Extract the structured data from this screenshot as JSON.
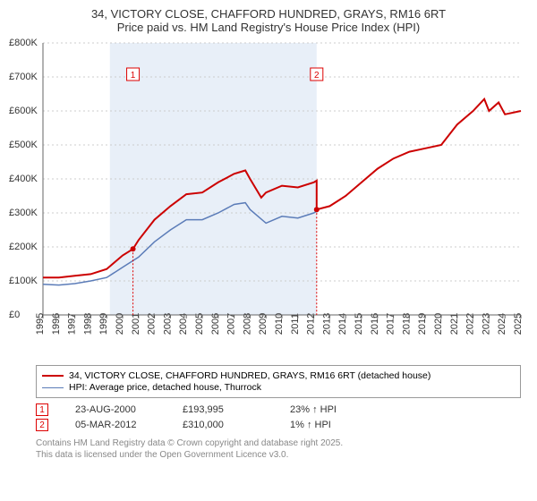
{
  "title": {
    "line1": "34, VICTORY CLOSE, CHAFFORD HUNDRED, GRAYS, RM16 6RT",
    "line2": "Price paid vs. HM Land Registry's House Price Index (HPI)"
  },
  "chart": {
    "type": "line",
    "x_years": [
      1995,
      1996,
      1997,
      1998,
      1999,
      2000,
      2001,
      2002,
      2003,
      2004,
      2005,
      2006,
      2007,
      2008,
      2009,
      2010,
      2011,
      2012,
      2013,
      2014,
      2015,
      2016,
      2017,
      2018,
      2019,
      2020,
      2021,
      2022,
      2023,
      2024,
      2025
    ],
    "ylim": [
      0,
      800000
    ],
    "ytick_step": 100000,
    "ytick_labels": [
      "£0",
      "£100K",
      "£200K",
      "£300K",
      "£400K",
      "£500K",
      "£600K",
      "£700K",
      "£800K"
    ],
    "background_color": "#ffffff",
    "grid_color": "#cccccc",
    "shade_color": "#e8eff8",
    "shaded_x_range": [
      1999.2,
      2012.18
    ],
    "series": [
      {
        "name": "34, VICTORY CLOSE, CHAFFORD HUNDRED, GRAYS, RM16 6RT (detached house)",
        "color": "#cc0000",
        "line_width": 2,
        "x": [
          1995,
          1996,
          1997,
          1998,
          1999,
          2000,
          2000.65,
          2001,
          2002,
          2003,
          2004,
          2005,
          2006,
          2007,
          2007.7,
          2008,
          2008.7,
          2009,
          2010,
          2011,
          2012,
          2012.18,
          2012.18,
          2013,
          2014,
          2015,
          2016,
          2017,
          2018,
          2019,
          2020,
          2021,
          2022,
          2022.7,
          2023,
          2023.6,
          2024,
          2025
        ],
        "y": [
          110000,
          110000,
          115000,
          120000,
          135000,
          175000,
          193995,
          220000,
          280000,
          320000,
          355000,
          360000,
          390000,
          415000,
          425000,
          400000,
          345000,
          360000,
          380000,
          375000,
          390000,
          395000,
          310000,
          320000,
          350000,
          390000,
          430000,
          460000,
          480000,
          490000,
          500000,
          560000,
          600000,
          635000,
          600000,
          625000,
          590000,
          600000
        ]
      },
      {
        "name": "HPI: Average price, detached house, Thurrock",
        "color": "#5b7cb8",
        "line_width": 1.5,
        "x": [
          1995,
          1996,
          1997,
          1998,
          1999,
          2000,
          2001,
          2002,
          2003,
          2004,
          2005,
          2006,
          2007,
          2007.7,
          2008,
          2009,
          2010,
          2011,
          2012,
          2012.18
        ],
        "y": [
          90000,
          88000,
          92000,
          100000,
          110000,
          140000,
          170000,
          215000,
          250000,
          280000,
          280000,
          300000,
          325000,
          330000,
          310000,
          270000,
          290000,
          285000,
          300000,
          305000
        ]
      }
    ],
    "markers": [
      {
        "n": "1",
        "x": 2000.65,
        "y": 193995
      },
      {
        "n": "2",
        "x": 2012.18,
        "y": 310000
      }
    ]
  },
  "legend": {
    "rows": [
      {
        "color": "#cc0000",
        "width": 2,
        "label": "34, VICTORY CLOSE, CHAFFORD HUNDRED, GRAYS, RM16 6RT (detached house)"
      },
      {
        "color": "#5b7cb8",
        "width": 1.5,
        "label": "HPI: Average price, detached house, Thurrock"
      }
    ]
  },
  "marker_table": [
    {
      "n": "1",
      "date": "23-AUG-2000",
      "price": "£193,995",
      "hpi": "23% ↑ HPI"
    },
    {
      "n": "2",
      "date": "05-MAR-2012",
      "price": "£310,000",
      "hpi": "1% ↑ HPI"
    }
  ],
  "footnote": {
    "line1": "Contains HM Land Registry data © Crown copyright and database right 2025.",
    "line2": "This data is licensed under the Open Government Licence v3.0."
  }
}
